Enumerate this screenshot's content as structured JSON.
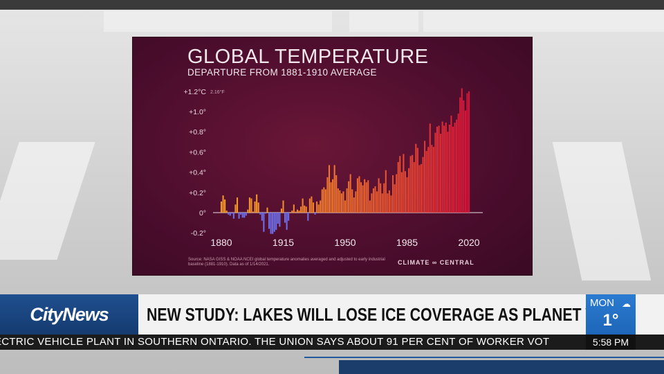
{
  "chart": {
    "title": "GLOBAL TEMPERATURE",
    "subtitle": "DEPARTURE FROM 1881-1910 AVERAGE",
    "top_label_f": "2.16°F",
    "source": "Source: NASA GISS & NOAA NCEI global temperature anomalies averaged and adjusted to early industrial baseline (1881-1910). Data as of 1/14/2021.",
    "brand": "CLIMATE ∞ CENTRAL",
    "colors": {
      "warm_low": "#f59a2a",
      "warm_high": "#d8143a",
      "cool": "#6d6ee8",
      "axis": "#cbb8c0"
    }
  },
  "chart_data": {
    "type": "bar",
    "title": "GLOBAL TEMPERATURE",
    "subtitle": "DEPARTURE FROM 1881-1910 AVERAGE",
    "unit": "°C",
    "x_start": 1880,
    "x_end": 2020,
    "xticks": [
      1880,
      1915,
      1950,
      1985,
      2020
    ],
    "xtick_labels": [
      "1880",
      "1915",
      "1950",
      "1985",
      "2020"
    ],
    "yticks": [
      -0.2,
      0,
      0.2,
      0.4,
      0.6,
      0.8,
      1.0,
      1.2
    ],
    "ytick_labels": [
      "-0.2°",
      "0°",
      "+0.2°",
      "+0.4°",
      "+0.6°",
      "+0.8°",
      "+1.0°",
      "+1.2°C"
    ],
    "ylim": [
      -0.22,
      1.25
    ],
    "x": [
      1880,
      1881,
      1882,
      1883,
      1884,
      1885,
      1886,
      1887,
      1888,
      1889,
      1890,
      1891,
      1892,
      1893,
      1894,
      1895,
      1896,
      1897,
      1898,
      1899,
      1900,
      1901,
      1902,
      1903,
      1904,
      1905,
      1906,
      1907,
      1908,
      1909,
      1910,
      1911,
      1912,
      1913,
      1914,
      1915,
      1916,
      1917,
      1918,
      1919,
      1920,
      1921,
      1922,
      1923,
      1924,
      1925,
      1926,
      1927,
      1928,
      1929,
      1930,
      1931,
      1932,
      1933,
      1934,
      1935,
      1936,
      1937,
      1938,
      1939,
      1940,
      1941,
      1942,
      1943,
      1944,
      1945,
      1946,
      1947,
      1948,
      1949,
      1950,
      1951,
      1952,
      1953,
      1954,
      1955,
      1956,
      1957,
      1958,
      1959,
      1960,
      1961,
      1962,
      1963,
      1964,
      1965,
      1966,
      1967,
      1968,
      1969,
      1970,
      1971,
      1972,
      1973,
      1974,
      1975,
      1976,
      1977,
      1978,
      1979,
      1980,
      1981,
      1982,
      1983,
      1984,
      1985,
      1986,
      1987,
      1988,
      1989,
      1990,
      1991,
      1992,
      1993,
      1994,
      1995,
      1996,
      1997,
      1998,
      1999,
      2000,
      2001,
      2002,
      2003,
      2004,
      2005,
      2006,
      2007,
      2008,
      2009,
      2010,
      2011,
      2012,
      2013,
      2014,
      2015,
      2016,
      2017,
      2018,
      2019,
      2020
    ],
    "values": [
      0.11,
      0.17,
      0.13,
      0.02,
      -0.02,
      -0.03,
      -0.01,
      -0.06,
      0.08,
      0.15,
      -0.06,
      -0.02,
      -0.05,
      -0.05,
      -0.03,
      0.03,
      0.15,
      0.14,
      0.01,
      0.11,
      0.18,
      0.1,
      -0.02,
      -0.08,
      -0.19,
      -0.01,
      0.05,
      -0.16,
      -0.21,
      -0.21,
      -0.19,
      -0.17,
      -0.11,
      -0.14,
      0.04,
      0.12,
      -0.1,
      -0.17,
      -0.08,
      0.0,
      0.02,
      0.08,
      0.01,
      0.03,
      0.02,
      0.06,
      0.14,
      0.07,
      0.06,
      -0.08,
      0.14,
      0.16,
      0.1,
      -0.02,
      0.11,
      0.08,
      0.12,
      0.23,
      0.25,
      0.23,
      0.35,
      0.47,
      0.3,
      0.33,
      0.47,
      0.37,
      0.24,
      0.22,
      0.19,
      0.21,
      0.12,
      0.24,
      0.31,
      0.38,
      0.23,
      0.15,
      0.21,
      0.34,
      0.36,
      0.3,
      0.27,
      0.33,
      0.3,
      0.32,
      0.12,
      0.19,
      0.24,
      0.26,
      0.21,
      0.34,
      0.29,
      0.19,
      0.29,
      0.42,
      0.19,
      0.22,
      0.17,
      0.37,
      0.28,
      0.38,
      0.5,
      0.56,
      0.4,
      0.58,
      0.41,
      0.35,
      0.44,
      0.56,
      0.57,
      0.5,
      0.68,
      0.64,
      0.47,
      0.48,
      0.55,
      0.71,
      0.61,
      0.65,
      0.88,
      0.67,
      0.65,
      0.79,
      0.85,
      0.86,
      0.78,
      0.9,
      0.86,
      0.89,
      0.8,
      0.87,
      0.96,
      0.85,
      0.89,
      0.92,
      0.98,
      1.14,
      1.23,
      1.11,
      1.01,
      1.18,
      1.2
    ],
    "legend": ""
  },
  "lower_third": {
    "logo": "CityNews",
    "headline": "NEW STUDY: LAKES WILL LOSE ICE COVERAGE AS PLANET WARMS",
    "weather_day": "MON",
    "weather_icon": "cloud-icon",
    "weather_temp": "1°",
    "ticker": "ECTRIC VEHICLE PLANT IN SOUTHERN ONTARIO. THE UNION SAYS ABOUT 91 PER CENT OF WORKER VOT",
    "clock": "5:58 PM"
  }
}
